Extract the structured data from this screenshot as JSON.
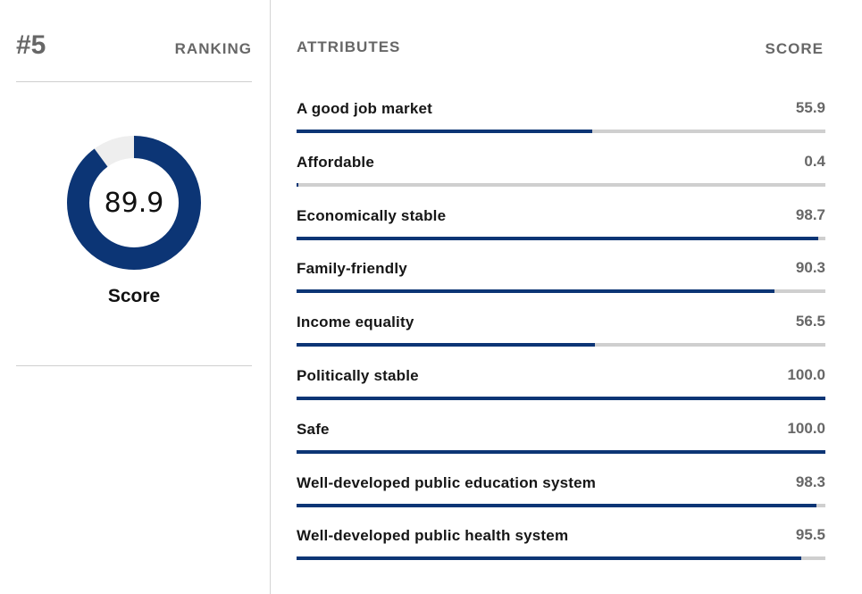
{
  "summary": {
    "rank": "#5",
    "ranking_label": "RANKING",
    "score": 89.9,
    "score_text": "89.9",
    "score_label": "Score",
    "colors": {
      "fill": "#0c3575",
      "track": "#eeeeee"
    }
  },
  "headers": {
    "attributes": "ATTRIBUTES",
    "score": "SCORE"
  },
  "chart_data": {
    "type": "bar",
    "orientation": "horizontal",
    "categories": [
      "A good job market",
      "Affordable",
      "Economically stable",
      "Family-friendly",
      "Income equality",
      "Politically stable",
      "Safe",
      "Well-developed public education system",
      "Well-developed public health system"
    ],
    "values": [
      55.9,
      0.4,
      98.7,
      90.3,
      56.5,
      100.0,
      100.0,
      98.3,
      95.5
    ],
    "value_labels": [
      "55.9",
      "0.4",
      "98.7",
      "90.3",
      "56.5",
      "100.0",
      "100.0",
      "98.3",
      "95.5"
    ],
    "xlim": [
      0,
      100
    ],
    "bar_color": "#0c3575",
    "track_color": "#cfcfcf"
  }
}
